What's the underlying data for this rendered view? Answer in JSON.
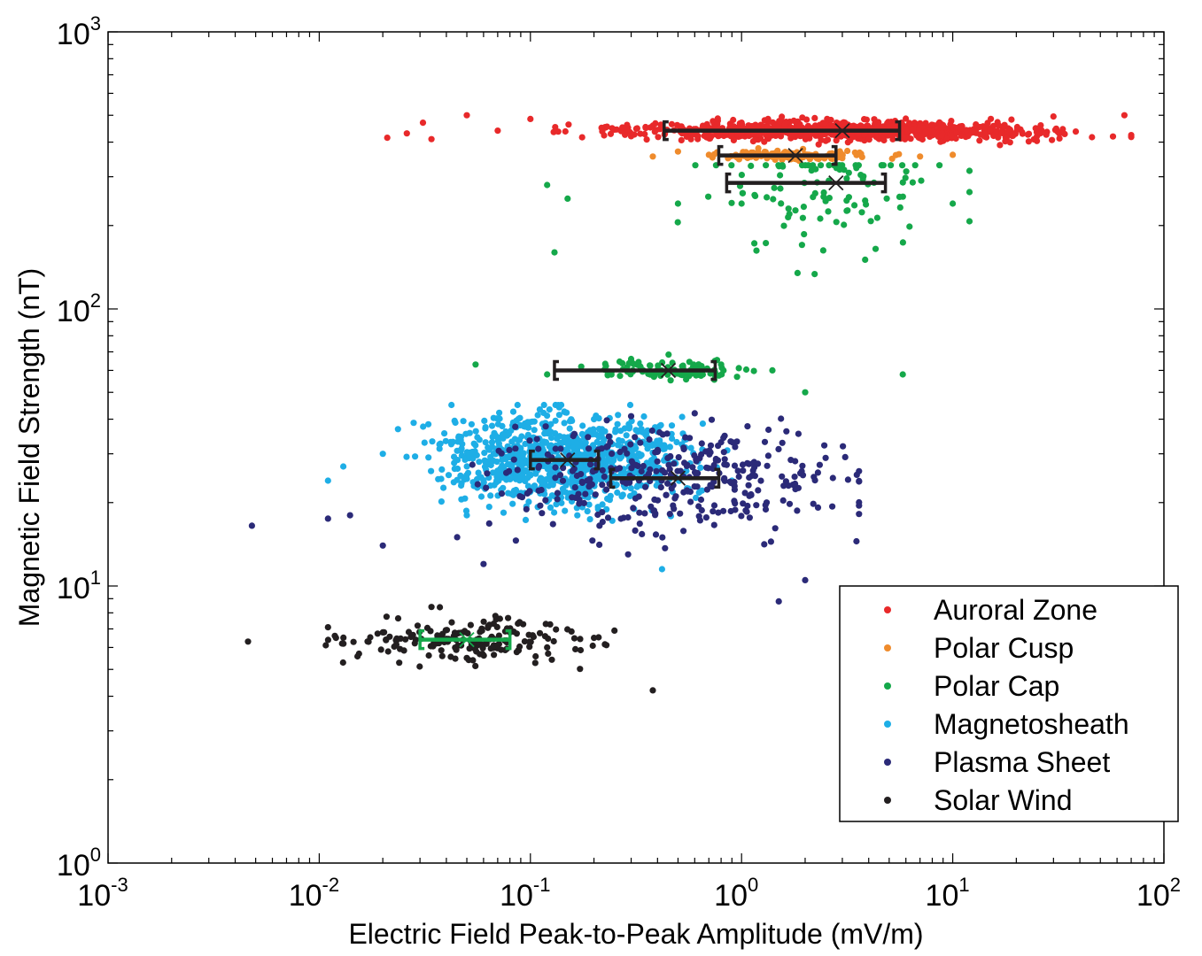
{
  "chart_data": {
    "type": "scatter",
    "title": "",
    "xlabel": "Electric Field Peak-to-Peak Amplitude (mV/m)",
    "ylabel": "Magnetic Field Strength (nT)",
    "xscale": "log",
    "yscale": "log",
    "xlim": [
      0.001,
      100
    ],
    "ylim": [
      1,
      1000
    ],
    "grid": false,
    "legend_position": "bottom-right",
    "x_ticks": [
      {
        "base": "10",
        "exp": "-3",
        "value": 0.001
      },
      {
        "base": "10",
        "exp": "-2",
        "value": 0.01
      },
      {
        "base": "10",
        "exp": "-1",
        "value": 0.1
      },
      {
        "base": "10",
        "exp": "0",
        "value": 1
      },
      {
        "base": "10",
        "exp": "1",
        "value": 10
      },
      {
        "base": "10",
        "exp": "2",
        "value": 100
      }
    ],
    "y_ticks": [
      {
        "base": "10",
        "exp": "0",
        "value": 1
      },
      {
        "base": "10",
        "exp": "1",
        "value": 10
      },
      {
        "base": "10",
        "exp": "2",
        "value": 100
      },
      {
        "base": "10",
        "exp": "3",
        "value": 1000
      }
    ],
    "series": [
      {
        "name": "Auroral Zone",
        "color": "#e8292a",
        "x_range": [
          0.02,
          70
        ],
        "y_range": [
          390,
          510
        ],
        "n_points": 900,
        "mean": {
          "x": 3.0,
          "y": 440
        },
        "error_bar_x": [
          0.43,
          5.6
        ],
        "error_bar_color": "#231f20",
        "points": [
          [
            0.021,
            415
          ],
          [
            0.026,
            430
          ],
          [
            0.031,
            470
          ],
          [
            0.034,
            410
          ],
          [
            0.05,
            500
          ],
          [
            0.07,
            440
          ],
          [
            0.1,
            485
          ],
          [
            0.3,
            420
          ],
          [
            1.0,
            470
          ],
          [
            5,
            450
          ],
          [
            15,
            440
          ],
          [
            30,
            495
          ],
          [
            65,
            500
          ]
        ]
      },
      {
        "name": "Polar Cusp",
        "color": "#ef8b2c",
        "x_range": [
          0.35,
          12
        ],
        "y_range": [
          340,
          395
        ],
        "n_points": 120,
        "mean": {
          "x": 1.8,
          "y": 358
        },
        "error_bar_x": [
          0.78,
          2.8
        ],
        "error_bar_color": "#231f20",
        "points": [
          [
            0.38,
            355
          ],
          [
            0.5,
            370
          ],
          [
            0.7,
            360
          ],
          [
            1.2,
            380
          ],
          [
            3,
            350
          ],
          [
            7,
            355
          ],
          [
            10,
            360
          ]
        ]
      },
      {
        "name": "Polar Cap",
        "color": "#15a84a",
        "x_range": [
          0.12,
          12
        ],
        "y_range": [
          48,
          330
        ],
        "n_points": 220,
        "mean": {
          "x": 2.8,
          "y": 285
        },
        "error_bar_x": [
          0.85,
          4.8
        ],
        "error_bar_color": "#231f20",
        "mean_2": {
          "x": 0.45,
          "y": 60
        },
        "error_bar_x_2": [
          0.13,
          0.75
        ],
        "points": [
          [
            0.13,
            160
          ],
          [
            0.12,
            280
          ],
          [
            0.15,
            250
          ],
          [
            0.5,
            240
          ],
          [
            1.0,
            240
          ],
          [
            2.5,
            245
          ],
          [
            10,
            240
          ],
          [
            12,
            315
          ],
          [
            0.055,
            63
          ],
          [
            0.12,
            58
          ],
          [
            0.3,
            66
          ],
          [
            0.8,
            63
          ],
          [
            1.4,
            60
          ],
          [
            2.0,
            50
          ],
          [
            5.8,
            58
          ]
        ]
      },
      {
        "name": "Magnetosheath",
        "color": "#1eaee6",
        "x_range": [
          0.011,
          1.1
        ],
        "y_range": [
          11.5,
          45
        ],
        "n_points": 900,
        "mean": {
          "x": 0.15,
          "y": 28.5
        },
        "error_bar_x": [
          0.1,
          0.21
        ],
        "error_bar_color": "#231f20",
        "points": [
          [
            0.011,
            24
          ],
          [
            0.013,
            27
          ],
          [
            0.02,
            30
          ],
          [
            0.05,
            18
          ],
          [
            0.1,
            32
          ],
          [
            0.2,
            40
          ],
          [
            0.42,
            11.5
          ],
          [
            0.9,
            24
          ]
        ]
      },
      {
        "name": "Plasma Sheet",
        "color": "#2b2a78",
        "x_range": [
          0.0048,
          3.6
        ],
        "y_range": [
          8.5,
          44
        ],
        "n_points": 350,
        "mean": {
          "x": 0.5,
          "y": 24.5
        },
        "error_bar_x": [
          0.24,
          0.78
        ],
        "error_bar_color": "#231f20",
        "points": [
          [
            0.0048,
            16.5
          ],
          [
            0.011,
            17.5
          ],
          [
            0.014,
            18
          ],
          [
            0.02,
            14
          ],
          [
            0.045,
            15
          ],
          [
            0.06,
            12
          ],
          [
            0.3,
            41
          ],
          [
            0.6,
            42
          ],
          [
            1.5,
            8.8
          ],
          [
            2.0,
            10.5
          ],
          [
            2.5,
            29
          ],
          [
            3.5,
            14.5
          ]
        ]
      },
      {
        "name": "Solar Wind",
        "color": "#231f20",
        "x_range": [
          0.0046,
          0.4
        ],
        "y_range": [
          4.2,
          8.5
        ],
        "n_points": 180,
        "mean": {
          "x": 0.05,
          "y": 6.4
        },
        "error_bar_x": [
          0.03,
          0.08
        ],
        "error_bar_color": "#15a84a",
        "points": [
          [
            0.0046,
            6.3
          ],
          [
            0.011,
            7.1
          ],
          [
            0.012,
            6.5
          ],
          [
            0.02,
            6.8
          ],
          [
            0.034,
            8.4
          ],
          [
            0.05,
            5.5
          ],
          [
            0.08,
            6.8
          ],
          [
            0.12,
            6.0
          ],
          [
            0.2,
            6.5
          ],
          [
            0.25,
            6.9
          ],
          [
            0.38,
            4.2
          ]
        ]
      }
    ]
  }
}
